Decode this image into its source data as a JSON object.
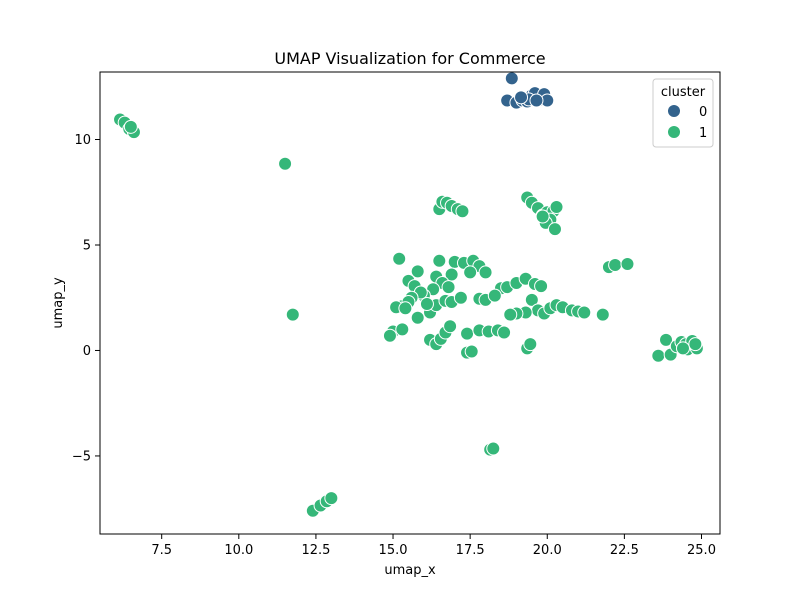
{
  "chart_data": {
    "type": "scatter",
    "title": "UMAP Visualization for Commerce",
    "xlabel": "umap_x",
    "ylabel": "umap_y",
    "xlim": [
      5.5,
      25.6
    ],
    "ylim": [
      -8.7,
      13.2
    ],
    "x_ticks": [
      7.5,
      10.0,
      12.5,
      15.0,
      17.5,
      20.0,
      22.5,
      25.0
    ],
    "x_tick_labels": [
      "7.5",
      "10.0",
      "12.5",
      "15.0",
      "17.5",
      "20.0",
      "22.5",
      "25.0"
    ],
    "y_ticks": [
      -5,
      0,
      5,
      10
    ],
    "y_tick_labels": [
      "−5",
      "0",
      "5",
      "10"
    ],
    "grid": false,
    "legend": {
      "title": "cluster",
      "placement": "top-right",
      "entries": [
        {
          "label": "0",
          "color": "#33638d"
        },
        {
          "label": "1",
          "color": "#35b779"
        }
      ]
    },
    "series": [
      {
        "name": "0",
        "color": "#33638d",
        "points": [
          [
            18.7,
            11.85
          ],
          [
            19.0,
            11.75
          ],
          [
            19.2,
            11.85
          ],
          [
            19.35,
            11.8
          ],
          [
            19.5,
            12.1
          ],
          [
            19.55,
            11.95
          ],
          [
            19.6,
            12.2
          ],
          [
            19.8,
            11.9
          ],
          [
            19.9,
            12.15
          ],
          [
            20.0,
            11.85
          ],
          [
            19.4,
            11.9
          ],
          [
            19.15,
            12.0
          ],
          [
            18.85,
            12.9
          ],
          [
            19.65,
            11.85
          ]
        ]
      },
      {
        "name": "1",
        "color": "#35b779",
        "points": [
          [
            6.15,
            10.95
          ],
          [
            6.3,
            10.8
          ],
          [
            6.45,
            10.5
          ],
          [
            6.6,
            10.35
          ],
          [
            6.5,
            10.6
          ],
          [
            11.5,
            8.85
          ],
          [
            11.75,
            1.7
          ],
          [
            12.4,
            -7.6
          ],
          [
            12.65,
            -7.35
          ],
          [
            12.85,
            -7.15
          ],
          [
            13.0,
            -7.0
          ],
          [
            18.15,
            -4.7
          ],
          [
            18.25,
            -4.65
          ],
          [
            16.5,
            6.7
          ],
          [
            16.6,
            7.05
          ],
          [
            16.75,
            7.0
          ],
          [
            16.9,
            6.85
          ],
          [
            17.1,
            6.7
          ],
          [
            17.25,
            6.6
          ],
          [
            19.35,
            7.25
          ],
          [
            19.5,
            7.0
          ],
          [
            19.7,
            6.75
          ],
          [
            19.85,
            6.4
          ],
          [
            20.0,
            6.55
          ],
          [
            20.2,
            6.6
          ],
          [
            20.3,
            6.8
          ],
          [
            20.1,
            6.2
          ],
          [
            19.95,
            6.05
          ],
          [
            20.25,
            5.75
          ],
          [
            19.85,
            6.35
          ],
          [
            15.2,
            4.35
          ],
          [
            16.5,
            4.25
          ],
          [
            17.0,
            4.2
          ],
          [
            17.3,
            4.15
          ],
          [
            17.6,
            4.25
          ],
          [
            17.8,
            4.0
          ],
          [
            18.0,
            3.7
          ],
          [
            17.5,
            3.7
          ],
          [
            16.9,
            3.6
          ],
          [
            15.8,
            3.75
          ],
          [
            15.5,
            3.3
          ],
          [
            15.7,
            3.05
          ],
          [
            16.4,
            3.5
          ],
          [
            16.6,
            3.2
          ],
          [
            16.3,
            2.9
          ],
          [
            16.0,
            2.6
          ],
          [
            15.9,
            2.75
          ],
          [
            15.6,
            2.5
          ],
          [
            15.3,
            2.1
          ],
          [
            15.5,
            2.3
          ],
          [
            15.8,
            1.55
          ],
          [
            16.2,
            1.8
          ],
          [
            16.4,
            2.15
          ],
          [
            16.7,
            2.35
          ],
          [
            16.9,
            2.3
          ],
          [
            17.8,
            2.45
          ],
          [
            18.0,
            2.4
          ],
          [
            18.5,
            2.95
          ],
          [
            18.7,
            3.0
          ],
          [
            19.0,
            3.2
          ],
          [
            19.3,
            3.4
          ],
          [
            19.6,
            3.15
          ],
          [
            19.8,
            3.05
          ],
          [
            19.5,
            2.4
          ],
          [
            19.7,
            1.9
          ],
          [
            19.9,
            1.75
          ],
          [
            20.1,
            2.0
          ],
          [
            20.3,
            2.15
          ],
          [
            20.5,
            2.05
          ],
          [
            20.8,
            1.9
          ],
          [
            21.0,
            1.85
          ],
          [
            21.2,
            1.8
          ],
          [
            19.3,
            1.8
          ],
          [
            19.0,
            1.75
          ],
          [
            18.8,
            1.7
          ],
          [
            21.8,
            1.7
          ],
          [
            22.0,
            3.95
          ],
          [
            22.2,
            4.05
          ],
          [
            22.6,
            4.1
          ],
          [
            15.0,
            0.9
          ],
          [
            15.3,
            1.0
          ],
          [
            14.9,
            0.7
          ],
          [
            16.2,
            0.5
          ],
          [
            16.4,
            0.3
          ],
          [
            16.55,
            0.55
          ],
          [
            16.7,
            0.85
          ],
          [
            16.85,
            1.15
          ],
          [
            17.4,
            0.8
          ],
          [
            17.8,
            0.95
          ],
          [
            18.1,
            0.9
          ],
          [
            18.4,
            0.95
          ],
          [
            18.6,
            0.85
          ],
          [
            17.4,
            -0.1
          ],
          [
            17.55,
            -0.05
          ],
          [
            19.35,
            0.1
          ],
          [
            19.45,
            0.3
          ],
          [
            23.6,
            -0.25
          ],
          [
            23.85,
            0.5
          ],
          [
            24.0,
            -0.2
          ],
          [
            24.2,
            0.2
          ],
          [
            24.35,
            0.4
          ],
          [
            24.5,
            0.3
          ],
          [
            24.55,
            0.05
          ],
          [
            24.7,
            0.45
          ],
          [
            24.85,
            0.1
          ],
          [
            24.8,
            0.3
          ],
          [
            24.4,
            0.1
          ],
          [
            15.1,
            2.05
          ],
          [
            16.1,
            2.2
          ],
          [
            17.2,
            2.5
          ],
          [
            18.3,
            2.6
          ],
          [
            15.4,
            2.0
          ],
          [
            16.8,
            3.0
          ]
        ]
      }
    ]
  }
}
